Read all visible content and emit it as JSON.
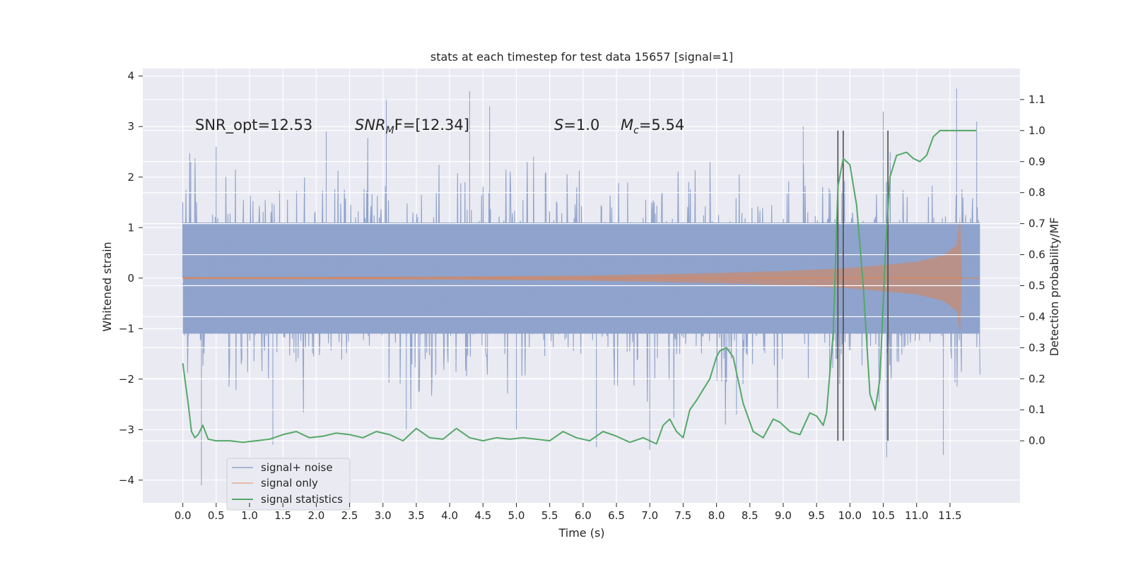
{
  "chart_data": {
    "type": "line",
    "title": "stats at each timestep for test data 15657 [signal=1]",
    "xlabel": "Time (s)",
    "ylabel": "Whitened strain",
    "ylabel_right": "Detection probability/MF",
    "xlim": [
      -0.6,
      12.55
    ],
    "ylim": [
      -4.45,
      4.15
    ],
    "ylim_right": [
      -0.2,
      1.2
    ],
    "x_ticks": [
      "0.0",
      "0.5",
      "1.0",
      "1.5",
      "2.0",
      "2.5",
      "3.0",
      "3.5",
      "4.0",
      "4.5",
      "5.0",
      "5.5",
      "6.0",
      "6.5",
      "7.0",
      "7.5",
      "8.0",
      "8.5",
      "9.0",
      "9.5",
      "10.0",
      "10.5",
      "11.0",
      "11.5"
    ],
    "x_tick_values": [
      0,
      0.5,
      1,
      1.5,
      2,
      2.5,
      3,
      3.5,
      4,
      4.5,
      5,
      5.5,
      6,
      6.5,
      7,
      7.5,
      8,
      8.5,
      9,
      9.5,
      10,
      10.5,
      11,
      11.5
    ],
    "y_ticks": [
      "−4",
      "−3",
      "−2",
      "−1",
      "0",
      "1",
      "2",
      "3",
      "4"
    ],
    "y_tick_values": [
      -4,
      -3,
      -2,
      -1,
      0,
      1,
      2,
      3,
      4
    ],
    "y_right_ticks": [
      "0.0",
      "0.1",
      "0.2",
      "0.3",
      "0.4",
      "0.5",
      "0.6",
      "0.7",
      "0.8",
      "0.9",
      "1.0",
      "1.1"
    ],
    "y_right_tick_values": [
      0,
      0.1,
      0.2,
      0.3,
      0.4,
      0.5,
      0.6,
      0.7,
      0.8,
      0.9,
      1.0,
      1.1
    ],
    "grid": true,
    "legend_position": "lower-left",
    "annotations": {
      "snr_opt": "SNR_opt=12.53",
      "snr_mf_main": "SNR",
      "snr_mf_sub": "M",
      "snr_mf_rest": "F=[12.34]",
      "s_label": "S",
      "s_rest": "=1.0",
      "mc_main": "M",
      "mc_sub": "c",
      "mc_rest": "=5.54"
    },
    "series": [
      {
        "name": "signal+ noise",
        "color": "#8fa3cc",
        "x_range": [
          0,
          11.95
        ],
        "band_upper": 1.1,
        "band_lower": -1.1,
        "noise_sigma": 0.95,
        "peaks": [
          [
            0.0,
            1.5
          ],
          [
            0.12,
            2.3
          ],
          [
            0.28,
            -4.1
          ],
          [
            0.5,
            2.6
          ],
          [
            1.35,
            -3.3
          ],
          [
            2.15,
            2.9
          ],
          [
            3.05,
            3.55
          ],
          [
            3.35,
            -3.0
          ],
          [
            4.3,
            3.7
          ],
          [
            4.6,
            3.4
          ],
          [
            5.0,
            -3.0
          ],
          [
            6.2,
            -3.35
          ],
          [
            7.0,
            -3.4
          ],
          [
            8.3,
            -2.7
          ],
          [
            9.3,
            3.0
          ],
          [
            10.5,
            3.3
          ],
          [
            10.55,
            -3.55
          ],
          [
            11.4,
            -3.5
          ],
          [
            11.6,
            3.75
          ],
          [
            11.9,
            3.1
          ]
        ]
      },
      {
        "name": "signal only",
        "color": "#dd8452",
        "x_range": [
          0,
          11.95
        ],
        "envelope": [
          [
            0,
            0.02
          ],
          [
            4,
            0.03
          ],
          [
            6,
            0.05
          ],
          [
            8,
            0.1
          ],
          [
            9,
            0.14
          ],
          [
            10,
            0.2
          ],
          [
            11,
            0.32
          ],
          [
            11.4,
            0.45
          ],
          [
            11.6,
            0.65
          ],
          [
            11.65,
            1.25
          ],
          [
            11.68,
            0.02
          ]
        ]
      },
      {
        "name": "signal statistics",
        "color": "#55a868",
        "axis": "right",
        "x": [
          0,
          0.08,
          0.13,
          0.18,
          0.23,
          0.3,
          0.38,
          0.5,
          0.7,
          0.9,
          1.1,
          1.3,
          1.5,
          1.7,
          1.9,
          2.1,
          2.3,
          2.5,
          2.7,
          2.9,
          3.1,
          3.3,
          3.5,
          3.7,
          3.9,
          4.1,
          4.3,
          4.5,
          4.7,
          4.9,
          5.1,
          5.3,
          5.5,
          5.7,
          5.9,
          6.1,
          6.3,
          6.5,
          6.7,
          6.9,
          7.1,
          7.2,
          7.3,
          7.4,
          7.5,
          7.6,
          7.7,
          7.9,
          8.0,
          8.05,
          8.15,
          8.25,
          8.4,
          8.55,
          8.7,
          8.85,
          8.95,
          9.1,
          9.25,
          9.4,
          9.5,
          9.6,
          9.65,
          9.75,
          9.82,
          9.9,
          10.0,
          10.1,
          10.2,
          10.3,
          10.38,
          10.45,
          10.53,
          10.6,
          10.7,
          10.85,
          10.95,
          11.05,
          11.15,
          11.25,
          11.35,
          11.55,
          11.7,
          11.9
        ],
        "y": [
          0.25,
          0.12,
          0.03,
          0.01,
          0.02,
          0.05,
          0.005,
          0.0,
          0.0,
          -0.005,
          0.0,
          0.005,
          0.02,
          0.03,
          0.01,
          0.015,
          0.025,
          0.02,
          0.01,
          0.03,
          0.02,
          0.0,
          0.04,
          0.01,
          0.005,
          0.04,
          0.01,
          0.0,
          0.01,
          0.005,
          0.01,
          0.005,
          0.0,
          0.03,
          0.01,
          0.0,
          0.03,
          0.015,
          -0.005,
          0.01,
          -0.01,
          0.05,
          0.07,
          0.03,
          0.01,
          0.1,
          0.13,
          0.2,
          0.27,
          0.29,
          0.3,
          0.27,
          0.12,
          0.03,
          0.01,
          0.07,
          0.06,
          0.03,
          0.02,
          0.09,
          0.08,
          0.05,
          0.09,
          0.35,
          0.82,
          0.91,
          0.89,
          0.76,
          0.5,
          0.15,
          0.1,
          0.2,
          0.6,
          0.85,
          0.92,
          0.93,
          0.91,
          0.9,
          0.92,
          0.98,
          1.0,
          1.0,
          1.0,
          1.0
        ]
      }
    ],
    "vertical_lines": [
      9.82,
      9.9,
      10.57
    ]
  }
}
